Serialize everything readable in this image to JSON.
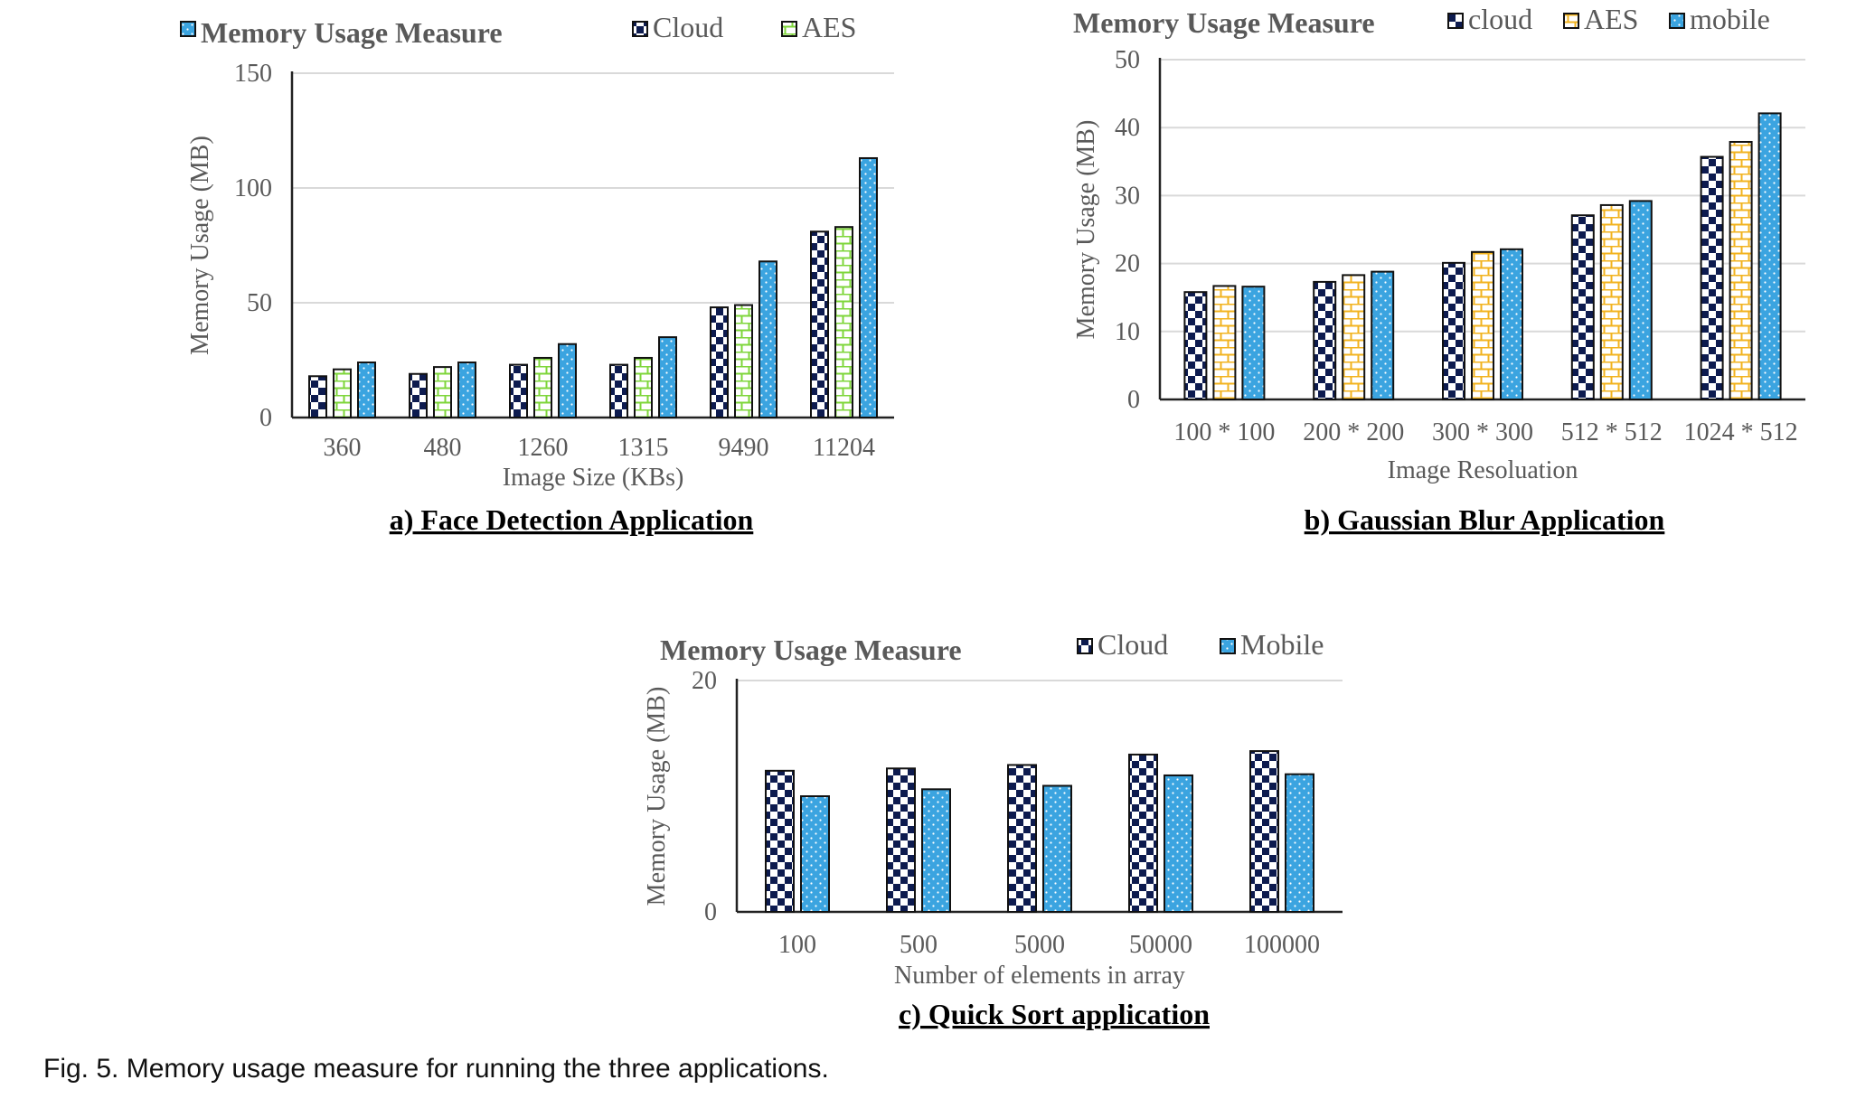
{
  "caption": "Fig. 5. Memory usage measure for running the three applications.",
  "chart_data": [
    {
      "type": "bar",
      "title": "Memory Usage Measure",
      "subtitle": "a) Face Detection Application",
      "xlabel": "Image Size (KBs)",
      "ylabel": "Memory Usage (MB)",
      "ylim": [
        0,
        150
      ],
      "yticks": [
        "0",
        "50",
        "100",
        "150"
      ],
      "grid": true,
      "legend_position": "top-right",
      "categories": [
        "360",
        "480",
        "1260",
        "1315",
        "9490",
        "11204"
      ],
      "series": [
        {
          "name": "Cloud",
          "pattern": "checker",
          "color": "#0d1b4f",
          "values": [
            18,
            19,
            23,
            23,
            48,
            81
          ]
        },
        {
          "name": "AES",
          "pattern": "brick",
          "color": "#7ed63a",
          "values": [
            21,
            22,
            26,
            26,
            49,
            83
          ]
        },
        {
          "name": "",
          "pattern": "dots",
          "color": "#3ba4e0",
          "values": [
            24,
            24,
            32,
            35,
            68,
            113
          ]
        }
      ]
    },
    {
      "type": "bar",
      "title": "Memory Usage Measure",
      "subtitle": "b) Gaussian Blur Application",
      "xlabel": "Image Resoluation",
      "ylabel": "Memory Usage (MB)",
      "ylim": [
        0,
        50
      ],
      "yticks": [
        "0",
        "10",
        "20",
        "30",
        "40",
        "50"
      ],
      "grid": true,
      "legend_position": "top-right",
      "categories": [
        "100 * 100",
        "200 * 200",
        "300 * 300",
        "512 * 512",
        "1024 * 512"
      ],
      "series": [
        {
          "name": "cloud",
          "pattern": "checker",
          "color": "#0d1b4f",
          "values": [
            15.8,
            17.3,
            20.1,
            27.1,
            35.7
          ]
        },
        {
          "name": "AES",
          "pattern": "brick",
          "color": "#f2b31f",
          "values": [
            16.7,
            18.3,
            21.7,
            28.6,
            37.9
          ]
        },
        {
          "name": "mobile",
          "pattern": "dots",
          "color": "#3ba4e0",
          "values": [
            16.6,
            18.8,
            22.1,
            29.2,
            42.1
          ]
        }
      ]
    },
    {
      "type": "bar",
      "title": "Memory Usage Measure",
      "subtitle": "c) Quick Sort application",
      "xlabel": "Number of elements in array",
      "ylabel": "Memory Usage (MB)",
      "ylim": [
        0,
        20
      ],
      "yticks": [
        "0",
        "20"
      ],
      "grid": true,
      "legend_position": "top-right",
      "categories": [
        "100",
        "500",
        "5000",
        "50000",
        "100000"
      ],
      "series": [
        {
          "name": "Cloud",
          "pattern": "checker",
          "color": "#0d1b4f",
          "values": [
            12.2,
            12.4,
            12.7,
            13.6,
            13.9
          ]
        },
        {
          "name": "Mobile",
          "pattern": "dots",
          "color": "#3ba4e0",
          "values": [
            10.0,
            10.6,
            10.9,
            11.8,
            11.9
          ]
        }
      ]
    }
  ]
}
